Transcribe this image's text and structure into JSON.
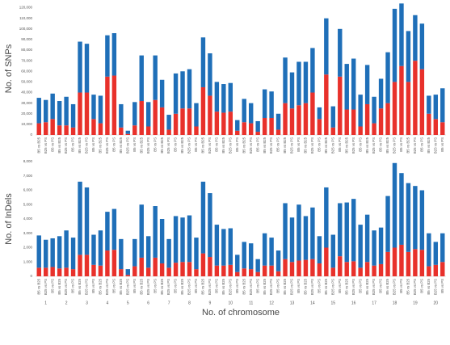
{
  "chart_data": [
    {
      "type": "bar",
      "stacked": true,
      "y_label": "No. of SNPs",
      "categories": [
        "B5 vs B25",
        "B25 vs PS",
        "B5 vs PS",
        "B5 vs B25",
        "B25 vs PS",
        "B5 vs PS",
        "B5 vs B25",
        "B25 vs PS",
        "B5 vs PS",
        "B5 vs B25",
        "B25 vs PS",
        "B5 vs PS",
        "B5 vs B25",
        "B25 vs PS",
        "B5 vs PS",
        "B5 vs B25",
        "B25 vs PS",
        "B5 vs PS",
        "B5 vs B25",
        "B25 vs PS",
        "B5 vs PS",
        "B5 vs B25",
        "B25 vs PS",
        "B5 vs PS",
        "B5 vs B25",
        "B25 vs PS",
        "B5 vs PS",
        "B5 vs B25",
        "B25 vs PS",
        "B5 vs PS",
        "B5 vs B25",
        "B25 vs PS",
        "B5 vs PS",
        "B5 vs B25",
        "B25 vs PS",
        "B5 vs PS",
        "B5 vs B25",
        "B25 vs PS",
        "B5 vs PS",
        "B5 vs B25",
        "B25 vs PS",
        "B5 vs PS",
        "B5 vs B25",
        "B25 vs PS",
        "B5 vs PS",
        "B5 vs B25",
        "B25 vs PS",
        "B5 vs PS",
        "B5 vs B25",
        "B25 vs PS",
        "B5 vs PS",
        "B5 vs B25",
        "B25 vs PS",
        "B5 vs PS",
        "B5 vs B25",
        "B25 vs PS",
        "B5 vs PS",
        "B5 vs B25",
        "B25 vs PS",
        "B5 vs PS"
      ],
      "series": [
        {
          "color": "#e8312b",
          "values": [
            11000,
            12000,
            15000,
            9000,
            9000,
            7000,
            40000,
            40000,
            15000,
            11000,
            55000,
            56000,
            7000,
            1000,
            9000,
            32000,
            8000,
            33000,
            26000,
            5000,
            20000,
            25000,
            25000,
            8000,
            45000,
            37000,
            22000,
            21000,
            22000,
            4000,
            12000,
            11000,
            3000,
            16000,
            16000,
            5000,
            30000,
            25000,
            28000,
            30000,
            40000,
            15000,
            57000,
            7000,
            55000,
            24000,
            24000,
            8000,
            29000,
            11000,
            25000,
            30000,
            50000,
            65000,
            50000,
            70000,
            62000,
            20000,
            15000,
            12000
          ]
        },
        {
          "color": "#1f6fb8",
          "values": [
            24000,
            21000,
            24000,
            23000,
            27000,
            22000,
            48000,
            46000,
            23000,
            26000,
            39000,
            40000,
            22000,
            3000,
            22000,
            43000,
            23000,
            42000,
            26000,
            14000,
            38000,
            35000,
            37000,
            22000,
            47000,
            40000,
            28000,
            27000,
            27000,
            10000,
            22000,
            19000,
            10000,
            27000,
            25000,
            15000,
            43000,
            34000,
            41000,
            39000,
            42000,
            11000,
            53000,
            20000,
            45000,
            43000,
            48000,
            30000,
            37000,
            25000,
            28000,
            48000,
            69000,
            59000,
            48000,
            43000,
            43000,
            17000,
            23000,
            32000
          ]
        }
      ],
      "ylim": [
        0,
        125000
      ],
      "yticks": [
        0,
        {
          "value": 10000,
          "label": "10,000"
        },
        {
          "value": 20000,
          "label": "20,000"
        },
        {
          "value": 30000,
          "label": "30,000"
        },
        {
          "value": 40000,
          "label": "40,000"
        },
        {
          "value": 50000,
          "label": "50,000"
        },
        {
          "value": 60000,
          "label": "60,000"
        },
        {
          "value": 70000,
          "label": "70,000"
        },
        {
          "value": 80000,
          "label": "80,000"
        },
        {
          "value": 90000,
          "label": "90,000"
        },
        {
          "value": 100000,
          "label": "100,000"
        },
        {
          "value": 110000,
          "label": "110,000"
        },
        {
          "value": 120000,
          "label": "120,000"
        }
      ],
      "grid": false
    },
    {
      "type": "bar",
      "stacked": true,
      "y_label": "No. of InDels",
      "x_label": "No. of chromosome",
      "categories": [
        "B5 vs B25",
        "B25 vs PS",
        "B5 vs PS",
        "B5 vs B25",
        "B25 vs PS",
        "B5 vs PS",
        "B5 vs B25",
        "B25 vs PS",
        "B5 vs PS",
        "B5 vs B25",
        "B25 vs PS",
        "B5 vs PS",
        "B5 vs B25",
        "B25 vs PS",
        "B5 vs PS",
        "B5 vs B25",
        "B25 vs PS",
        "B5 vs PS",
        "B5 vs B25",
        "B25 vs PS",
        "B5 vs PS",
        "B5 vs B25",
        "B25 vs PS",
        "B5 vs PS",
        "B5 vs B25",
        "B25 vs PS",
        "B5 vs PS",
        "B5 vs B25",
        "B25 vs PS",
        "B5 vs PS",
        "B5 vs B25",
        "B25 vs PS",
        "B5 vs PS",
        "B5 vs B25",
        "B25 vs PS",
        "B5 vs PS",
        "B5 vs B25",
        "B25 vs PS",
        "B5 vs PS",
        "B5 vs B25",
        "B25 vs PS",
        "B5 vs PS",
        "B5 vs B25",
        "B25 vs PS",
        "B5 vs PS",
        "B5 vs B25",
        "B25 vs PS",
        "B5 vs PS",
        "B5 vs B25",
        "B25 vs PS",
        "B5 vs PS",
        "B5 vs B25",
        "B25 vs PS",
        "B5 vs PS",
        "B5 vs B25",
        "B25 vs PS",
        "B5 vs PS",
        "B5 vs B25",
        "B25 vs PS",
        "B5 vs PS"
      ],
      "groups": [
        "1",
        "2",
        "3",
        "4",
        "5",
        "6",
        "7",
        "8",
        "9",
        "10",
        "11",
        "12",
        "13",
        "14",
        "15",
        "16",
        "17",
        "18",
        "19",
        "20"
      ],
      "series": [
        {
          "color": "#e8312b",
          "values": [
            600,
            600,
            650,
            550,
            600,
            500,
            1500,
            1500,
            800,
            750,
            1800,
            1850,
            500,
            100,
            700,
            1300,
            600,
            1300,
            900,
            600,
            950,
            1000,
            1000,
            500,
            1600,
            1350,
            750,
            750,
            800,
            300,
            550,
            500,
            300,
            750,
            750,
            350,
            1200,
            1000,
            1100,
            1150,
            1200,
            900,
            2000,
            600,
            1400,
            1000,
            1050,
            600,
            1000,
            750,
            850,
            1700,
            2000,
            2200,
            1700,
            1900,
            1850,
            700,
            800,
            1000
          ]
        },
        {
          "color": "#1f6fb8",
          "values": [
            2250,
            1950,
            2000,
            2250,
            2600,
            2200,
            5100,
            4700,
            2100,
            2450,
            2700,
            2850,
            2100,
            400,
            1900,
            3700,
            2200,
            3600,
            3100,
            2000,
            3250,
            3100,
            3250,
            2200,
            5000,
            4450,
            2850,
            2550,
            2550,
            1200,
            1850,
            1800,
            900,
            2250,
            1950,
            1450,
            3900,
            3100,
            3900,
            3050,
            3600,
            1900,
            4200,
            2300,
            3700,
            4150,
            4350,
            3000,
            3300,
            2450,
            2550,
            3900,
            5900,
            5000,
            4800,
            4400,
            4150,
            2300,
            1600,
            2000
          ]
        }
      ],
      "ylim": [
        0,
        8000
      ],
      "yticks": [
        0,
        {
          "value": 1000,
          "label": "1,000"
        },
        {
          "value": 2000,
          "label": "2,000"
        },
        {
          "value": 3000,
          "label": "3,000"
        },
        {
          "value": 4000,
          "label": "4,000"
        },
        {
          "value": 5000,
          "label": "5,000"
        },
        {
          "value": 6000,
          "label": "6,000"
        },
        {
          "value": 7000,
          "label": "7,000"
        },
        {
          "value": 8000,
          "label": "8,000"
        }
      ],
      "grid": false
    }
  ]
}
